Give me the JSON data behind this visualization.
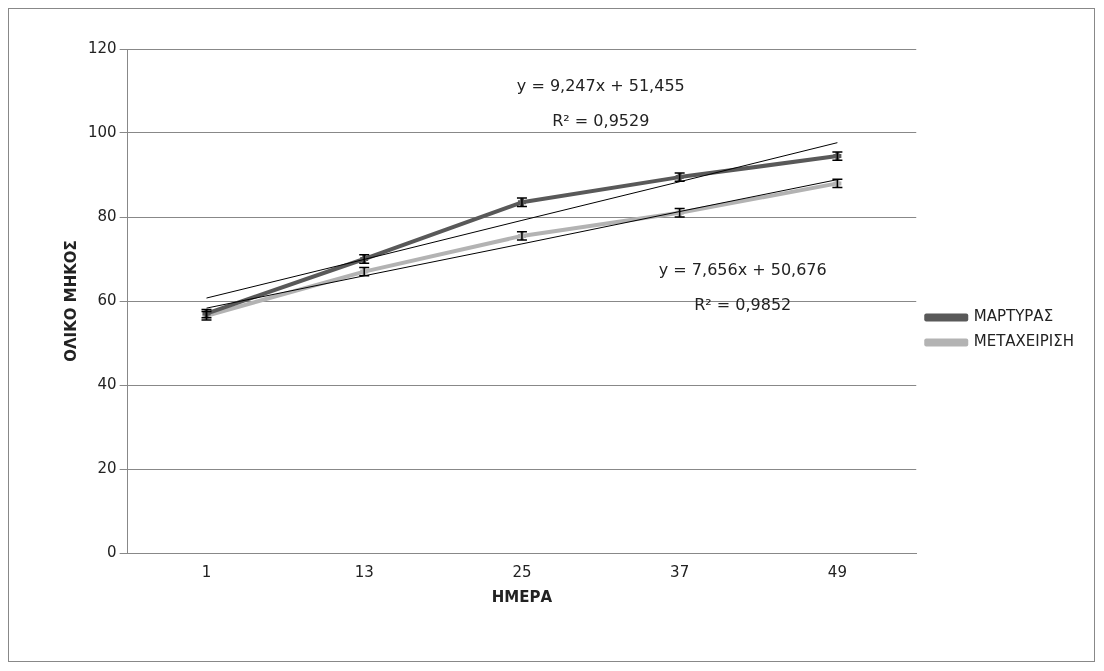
{
  "chart_data": {
    "type": "line",
    "xlabel": "ΗΜΕΡΑ",
    "ylabel": "ΟΛΙΚΟ ΜΗΚΟΣ",
    "categories": [
      "1",
      "13",
      "25",
      "37",
      "49"
    ],
    "series": [
      {
        "name": "ΜΑΡΤΥΡΑΣ",
        "color": "#595959",
        "marker": "cross",
        "values": [
          57,
          70,
          83.5,
          89.5,
          94.5
        ],
        "errors": [
          1,
          1,
          1,
          1,
          1
        ]
      },
      {
        "name": "ΜΕΤΑΧΕΙΡΙΣΗ",
        "color": "#b3b3b3",
        "marker": "cross",
        "values": [
          56.5,
          67,
          75.5,
          81,
          88
        ],
        "errors": [
          1,
          1,
          1,
          1,
          1
        ]
      },
      {
        "type": "line",
        "color": "#000000",
        "marker": "none",
        "values": [
          60.7,
          69.9,
          79.2,
          88.4,
          97.7
        ]
      },
      {
        "type": "line",
        "color": "#000000",
        "marker": "none",
        "values": [
          58.3,
          66,
          73.6,
          81.3,
          88.9
        ]
      }
    ],
    "ylim": [
      0,
      120
    ],
    "yticks": [
      0,
      20,
      40,
      60,
      80,
      100,
      120
    ],
    "grid": "y",
    "legend": "right",
    "annotations": [
      "y = 9,247x + 51,455",
      "R² = 0,9529",
      "y = 7,656x + 50,676",
      "R² = 0,9852"
    ]
  }
}
